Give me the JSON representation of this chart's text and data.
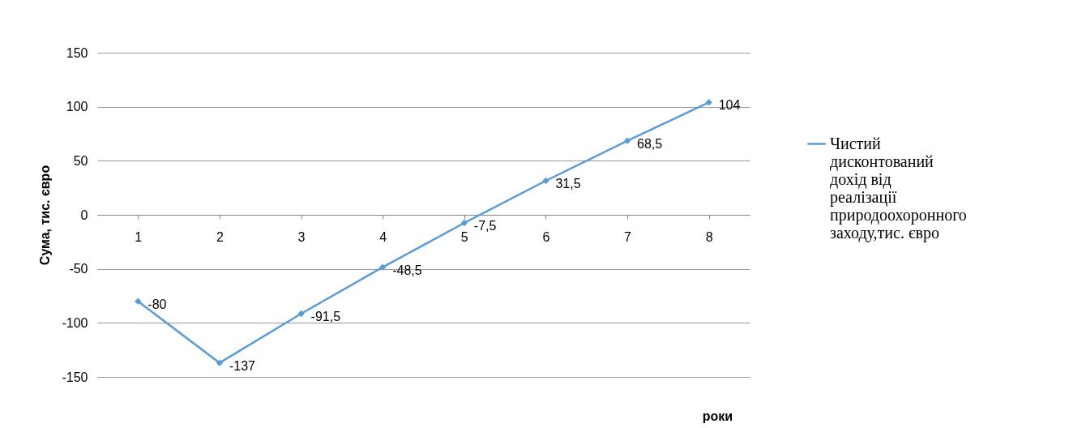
{
  "chart_data": {
    "type": "line",
    "xlabel": "роки",
    "ylabel": "Сума, тис. євро",
    "categories": [
      "1",
      "2",
      "3",
      "4",
      "5",
      "6",
      "7",
      "8"
    ],
    "series": [
      {
        "name": "Чистий дисконтований дохід від реалізації природоохоронного заходу,тис. євро",
        "color": "#5b9bd5",
        "values": [
          -80,
          -137,
          -91.5,
          -48.5,
          -7.5,
          31.5,
          68.5,
          104
        ],
        "value_labels": [
          "-80",
          "-137",
          "-91,5",
          "-48,5",
          "-7,5",
          "31,5",
          "68,5",
          "104"
        ]
      }
    ],
    "ylim": [
      -150,
      150
    ],
    "yticks": [
      -150,
      -100,
      -50,
      0,
      50,
      100,
      150
    ],
    "grid": "y",
    "legend": "right",
    "marker": "diamond",
    "line_style": "solid"
  }
}
